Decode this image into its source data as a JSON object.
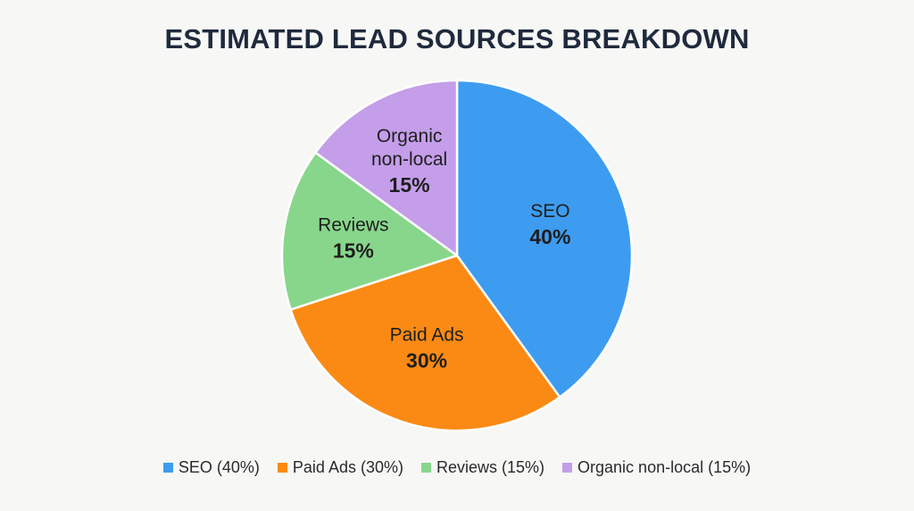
{
  "chart_data": {
    "type": "pie",
    "title": "ESTIMATED LEAD SOURCES BREAKDOWN",
    "slices": [
      {
        "label": "SEO",
        "label_lines": [
          "SEO"
        ],
        "value": 40,
        "percent_label": "40%",
        "color": "#3d9cf0",
        "legend": "SEO (40%)"
      },
      {
        "label": "Paid Ads",
        "label_lines": [
          "Paid Ads"
        ],
        "value": 30,
        "percent_label": "30%",
        "color": "#fb8a14",
        "legend": "Paid Ads (30%)"
      },
      {
        "label": "Reviews",
        "label_lines": [
          "Reviews"
        ],
        "value": 15,
        "percent_label": "15%",
        "color": "#88d68b",
        "legend": "Reviews (15%)"
      },
      {
        "label": "Organic non-local",
        "label_lines": [
          "Organic",
          "non-local"
        ],
        "value": 15,
        "percent_label": "15%",
        "color": "#c49ee9",
        "legend": "Organic non-local (15%)"
      }
    ],
    "start_angle_deg": 0,
    "direction": "clockwise",
    "legend_position": "bottom"
  }
}
